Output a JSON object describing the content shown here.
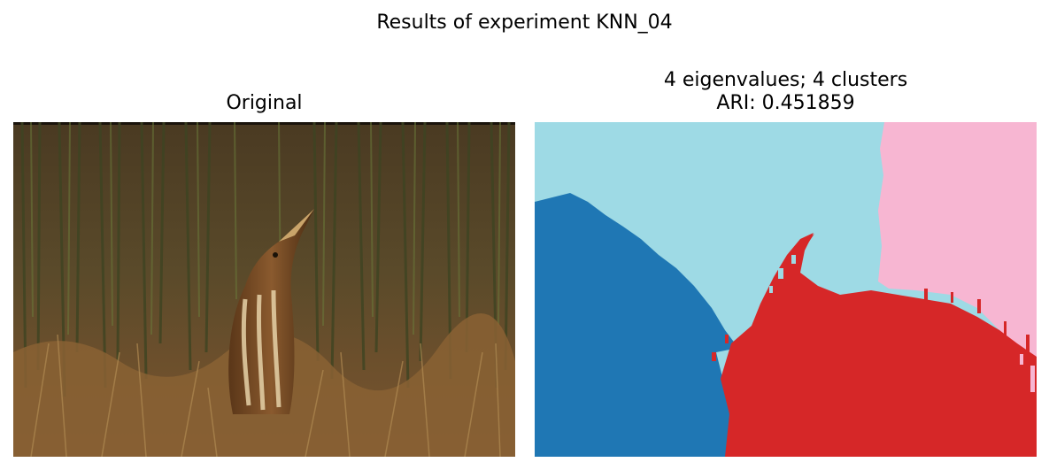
{
  "figure": {
    "suptitle": "Results of experiment KNN_04"
  },
  "left_panel": {
    "title": "Original",
    "image_description_icon": "bittern-photo"
  },
  "right_panel": {
    "title_line1": "4 eigenvalues; 4 clusters",
    "title_line2": "ARI: 0.451859",
    "segment_colors": {
      "cluster_dark_blue": "#1f77b4",
      "cluster_light_blue": "#9edae5",
      "cluster_pink": "#f7b6d2",
      "cluster_red": "#d62728"
    }
  }
}
